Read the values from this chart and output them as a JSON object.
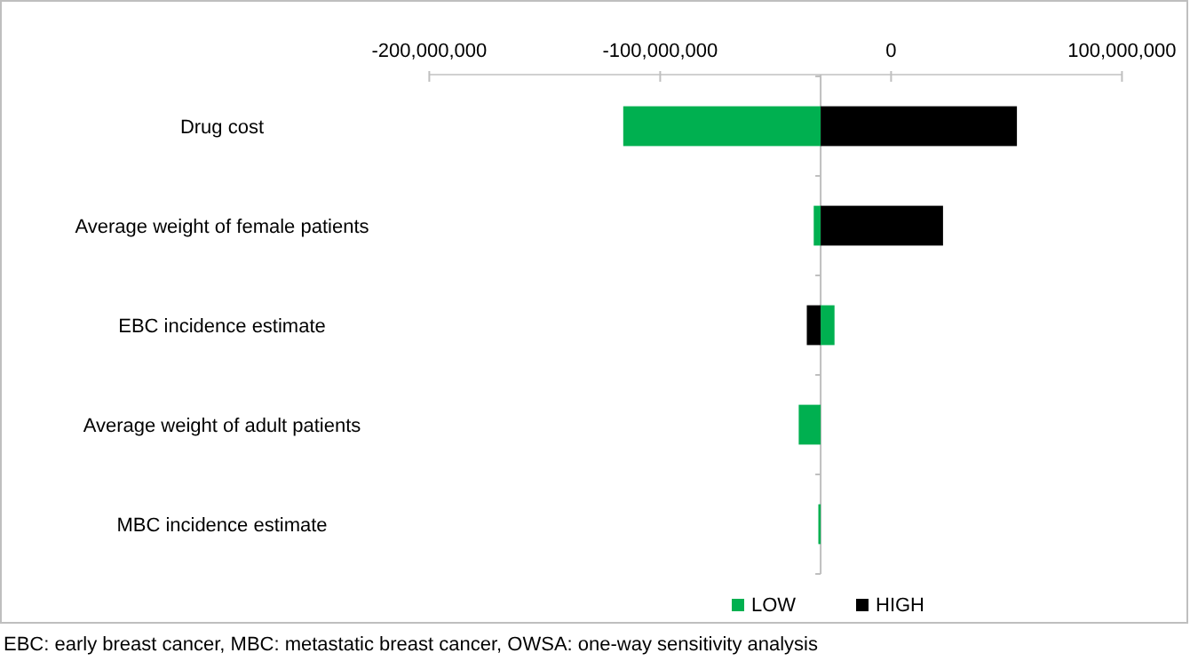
{
  "chart_data": {
    "type": "bar",
    "orientation": "horizontal",
    "categories": [
      "Drug cost",
      "Average weight of female patients",
      "EBC incidence estimate",
      "Average weight of adult patients",
      "MBC incidence estimate"
    ],
    "series": [
      {
        "name": "LOW",
        "color": "#00b050",
        "base": [
          -30500000,
          -30500000,
          -30500000,
          -30500000,
          -30500000
        ],
        "values": [
          -85500000,
          -3000000,
          6000000,
          -9500000,
          -1000000
        ]
      },
      {
        "name": "HIGH",
        "color": "#000000",
        "base": [
          -30500000,
          -30500000,
          -30500000,
          null,
          null
        ],
        "values": [
          85000000,
          53000000,
          -6000000,
          null,
          null
        ]
      }
    ],
    "xlim": [
      -200000000,
      100000000
    ],
    "xticks": [
      {
        "value": -200000000,
        "label": "-200,000,000"
      },
      {
        "value": -100000000,
        "label": "-100,000,000"
      },
      0,
      {
        "value": 100000000,
        "label": "100,000,000"
      }
    ],
    "ref_lines": [
      {
        "axis": "x",
        "value": -30500000,
        "color": "#bfbfbf"
      }
    ],
    "grid": false,
    "legend": "bottom",
    "annotations": [
      "EBC: early breast cancer, MBC: metastatic breast cancer, OWSA: one-way sensitivity analysis"
    ]
  }
}
